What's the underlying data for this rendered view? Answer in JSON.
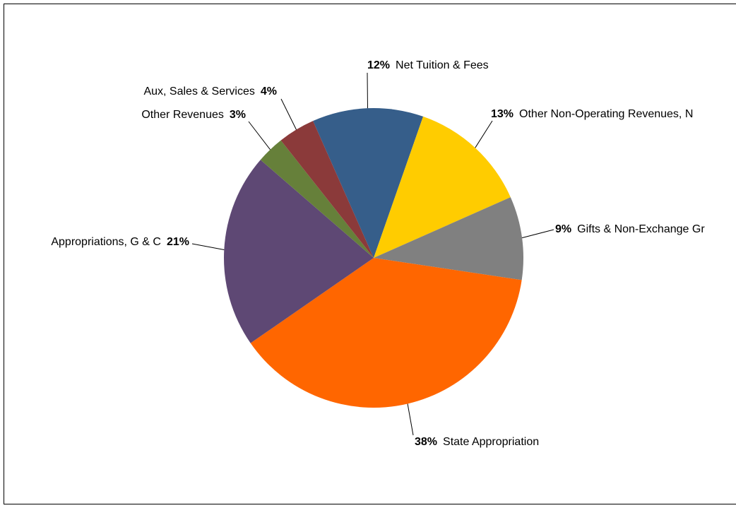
{
  "chart_data": {
    "type": "pie",
    "categories": [
      "Net Tuition & Fees",
      "Other Non-Operating Revenues, N",
      "Gifts & Non-Exchange Gr",
      "State Appropriation",
      "Appropriations, G & C",
      "Other Revenues",
      "Aux, Sales & Services"
    ],
    "values": [
      12,
      13,
      9,
      38,
      21,
      3,
      4
    ],
    "value_labels": [
      "12%",
      "13%",
      "9%",
      "38%",
      "21%",
      "3%",
      "4%"
    ],
    "colors": [
      "#365e8a",
      "#ffcc00",
      "#808080",
      "#ff6600",
      "#5e4874",
      "#66803a",
      "#8b3a3a"
    ]
  }
}
